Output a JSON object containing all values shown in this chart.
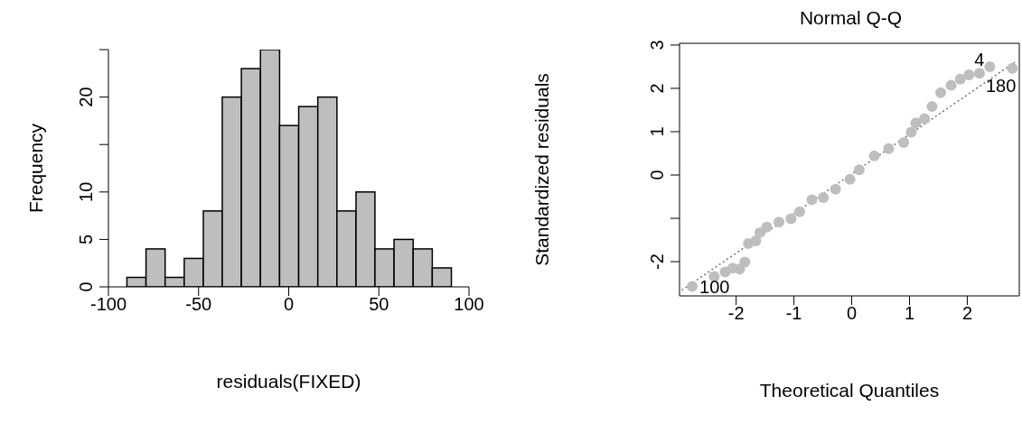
{
  "chart_data": [
    {
      "type": "histogram",
      "xlabel": "residuals(FIXED)",
      "ylabel": "Frequency",
      "color": "#bebebe",
      "bins": [
        -90,
        -79.4,
        -68.8,
        -58.2,
        -47.6,
        -37.1,
        -26.5,
        -15.9,
        -5.3,
        5.3,
        15.9,
        26.5,
        37.1,
        47.6,
        58.2,
        68.8,
        79.4,
        90
      ],
      "values": [
        1,
        4,
        1,
        3,
        8,
        20,
        23,
        25,
        17,
        19,
        20,
        8,
        10,
        4,
        5,
        4,
        2
      ],
      "xlim": [
        -100,
        100
      ],
      "xticks": [
        -100,
        -50,
        0,
        50,
        100
      ],
      "ylim": [
        0,
        25
      ],
      "yticks": [
        0,
        5,
        10,
        {
          "value": 15,
          "label": null
        },
        20,
        {
          "value": 25,
          "label": null
        }
      ]
    },
    {
      "type": "scatter",
      "title": "Normal Q-Q",
      "xlabel": "Theoretical Quantiles",
      "ylabel": "Standardized residuals",
      "series": [
        {
          "type": "scatter",
          "color": "#bebebe",
          "marker": "circle",
          "x": [
            -2.76,
            -2.38,
            -2.19,
            -2.06,
            -1.94,
            -1.85,
            -1.79,
            -1.66,
            -1.59,
            -1.47,
            -1.26,
            -1.05,
            -0.9,
            -0.69,
            -0.49,
            -0.28,
            -0.03,
            0.13,
            0.39,
            0.64,
            0.9,
            1.03,
            1.11,
            1.26,
            1.39,
            1.54,
            1.72,
            1.88,
            2.03,
            2.21,
            2.39,
            2.78
          ],
          "values": [
            -2.57,
            -2.34,
            -2.24,
            -2.15,
            -2.17,
            -2.01,
            -1.58,
            -1.52,
            -1.33,
            -1.2,
            -1.09,
            -1.01,
            -0.85,
            -0.57,
            -0.52,
            -0.33,
            -0.1,
            0.12,
            0.44,
            0.61,
            0.75,
            0.99,
            1.2,
            1.3,
            1.58,
            1.9,
            2.07,
            2.21,
            2.31,
            2.35,
            2.5,
            2.46
          ]
        },
        {
          "type": "line",
          "color": "#707070",
          "line_style": "dotted",
          "x": [
            -2.94,
            2.82
          ],
          "values": [
            -2.66,
            2.6
          ]
        }
      ],
      "xlim": [
        -2.98,
        2.9
      ],
      "xticks": [
        -2,
        -1,
        0,
        1,
        2
      ],
      "ylim": [
        -2.79,
        3.04
      ],
      "yticks": [
        -2,
        {
          "value": -1,
          "label": null
        },
        0,
        1,
        2,
        3
      ],
      "annotations": [
        {
          "text": "100",
          "x": -2.76,
          "y": -2.57
        },
        {
          "text": "4",
          "x": 2.21,
          "y": 2.35
        },
        {
          "text": "180",
          "x": 2.78,
          "y": 2.46
        }
      ]
    }
  ]
}
